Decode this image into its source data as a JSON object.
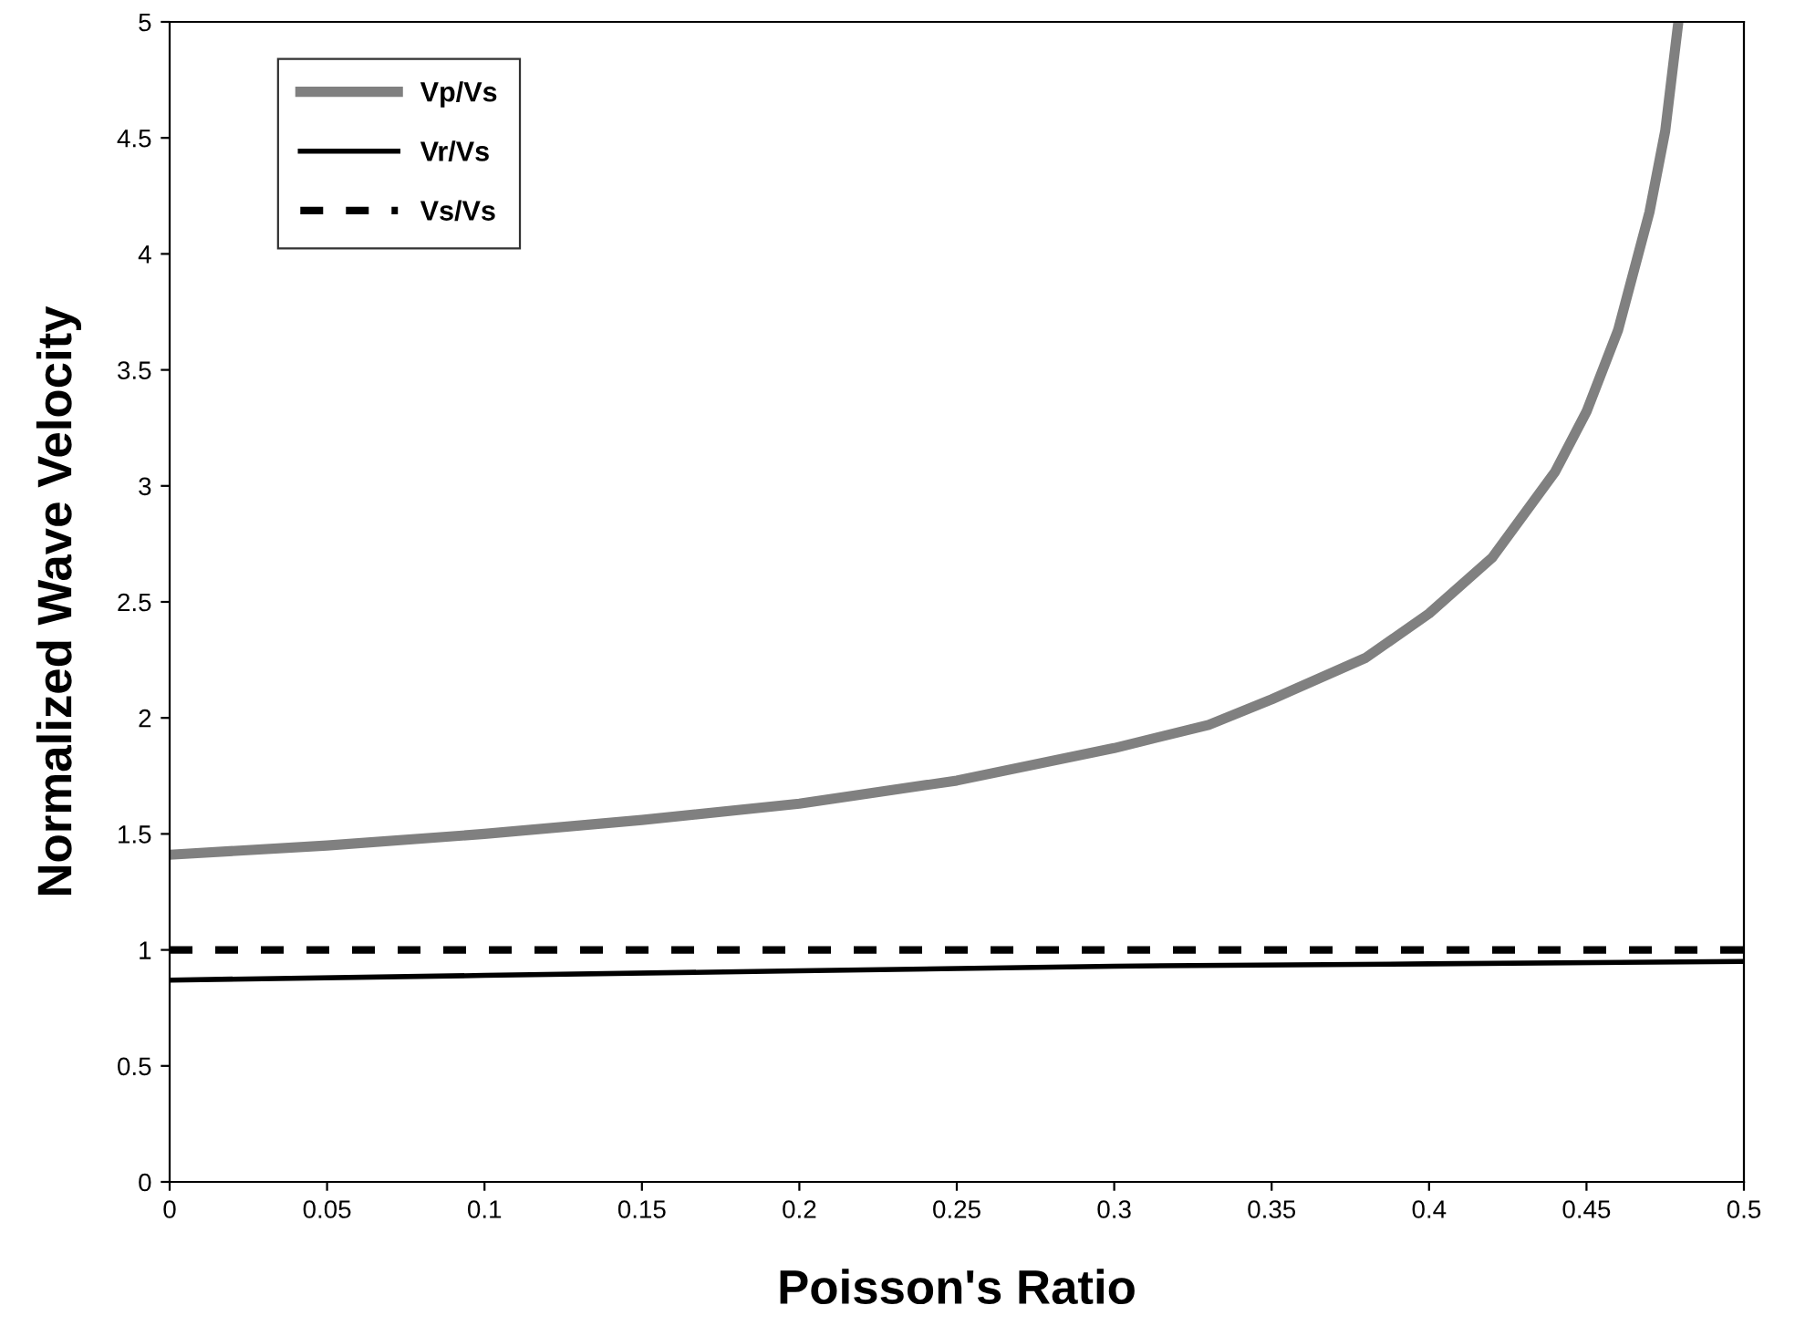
{
  "chart_data": {
    "type": "line",
    "xlabel": "Poisson's Ratio",
    "ylabel": "Normalized Wave Velocity",
    "xlim": [
      0,
      0.5
    ],
    "ylim": [
      0,
      5
    ],
    "xticks": [
      0,
      0.05,
      0.1,
      0.15,
      0.2,
      0.25,
      0.3,
      0.35,
      0.4,
      0.45,
      0.5
    ],
    "yticks": [
      0,
      0.5,
      1,
      1.5,
      2,
      2.5,
      3,
      3.5,
      4,
      4.5,
      5
    ],
    "grid": false,
    "legend": "top left",
    "marker": "none",
    "series": [
      {
        "name": "Vp/Vs",
        "color": "#808080",
        "line_style": "solid",
        "x": [
          0,
          0.05,
          0.1,
          0.15,
          0.2,
          0.25,
          0.3,
          0.33,
          0.35,
          0.38,
          0.4,
          0.42,
          0.44,
          0.45,
          0.46,
          0.47,
          0.475,
          0.479
        ],
        "values": [
          1.41,
          1.45,
          1.5,
          1.56,
          1.63,
          1.73,
          1.87,
          1.97,
          2.08,
          2.26,
          2.45,
          2.69,
          3.06,
          3.32,
          3.67,
          4.18,
          4.53,
          4.98
        ]
      },
      {
        "name": "Vr/Vs",
        "color": "#000000",
        "line_style": "solid",
        "x": [
          0,
          0.1,
          0.2,
          0.3,
          0.4,
          0.5
        ],
        "values": [
          0.87,
          0.89,
          0.91,
          0.93,
          0.94,
          0.95
        ]
      },
      {
        "name": "Vs/Vs",
        "color": "#000000",
        "line_style": "dashed",
        "x": [
          0,
          0.5
        ],
        "values": [
          1,
          1
        ]
      }
    ]
  }
}
